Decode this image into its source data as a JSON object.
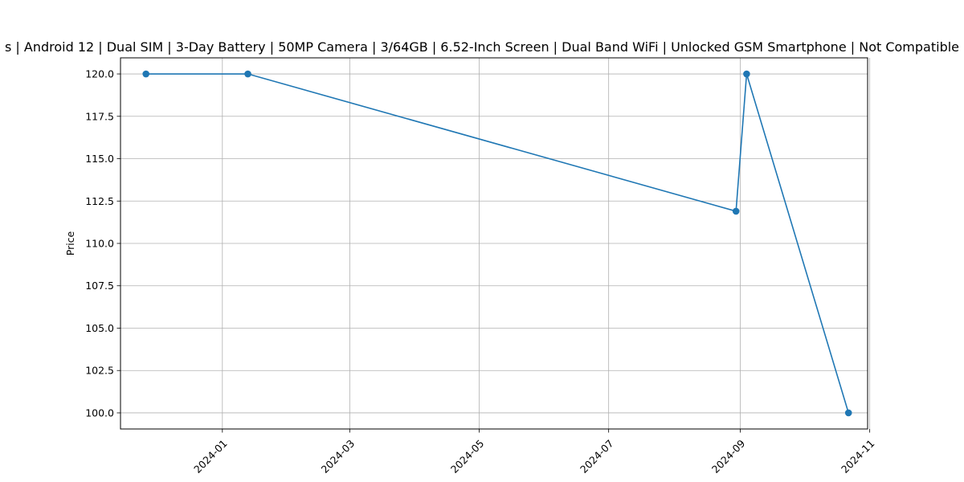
{
  "chart_data": {
    "type": "line",
    "title": "s | Android 12 | Dual SIM | 3-Day Battery | 50MP Camera | 3/64GB | 6.52-Inch Screen | Dual Band WiFi | Unlocked GSM Smartphone | Not Compatible",
    "xlabel": "",
    "ylabel": "Price",
    "x_axis_type": "date",
    "xlim": [
      "2023-11-14",
      "2024-10-31"
    ],
    "ylim": [
      99.05,
      120.95
    ],
    "x_ticks": [
      "2024-01",
      "2024-03",
      "2024-05",
      "2024-07",
      "2024-09",
      "2024-11"
    ],
    "y_ticks": [
      "100.0",
      "102.5",
      "105.0",
      "107.5",
      "110.0",
      "112.5",
      "115.0",
      "117.5",
      "120.0"
    ],
    "grid": true,
    "legend": "none",
    "series": [
      {
        "color": "#1f77b4",
        "marker": "circle",
        "points": [
          {
            "x": "2023-11-26",
            "y": 120.0
          },
          {
            "x": "2024-01-13",
            "y": 120.0
          },
          {
            "x": "2024-08-30",
            "y": 111.9
          },
          {
            "x": "2024-09-04",
            "y": 120.0
          },
          {
            "x": "2024-10-22",
            "y": 100.0
          }
        ]
      }
    ]
  }
}
